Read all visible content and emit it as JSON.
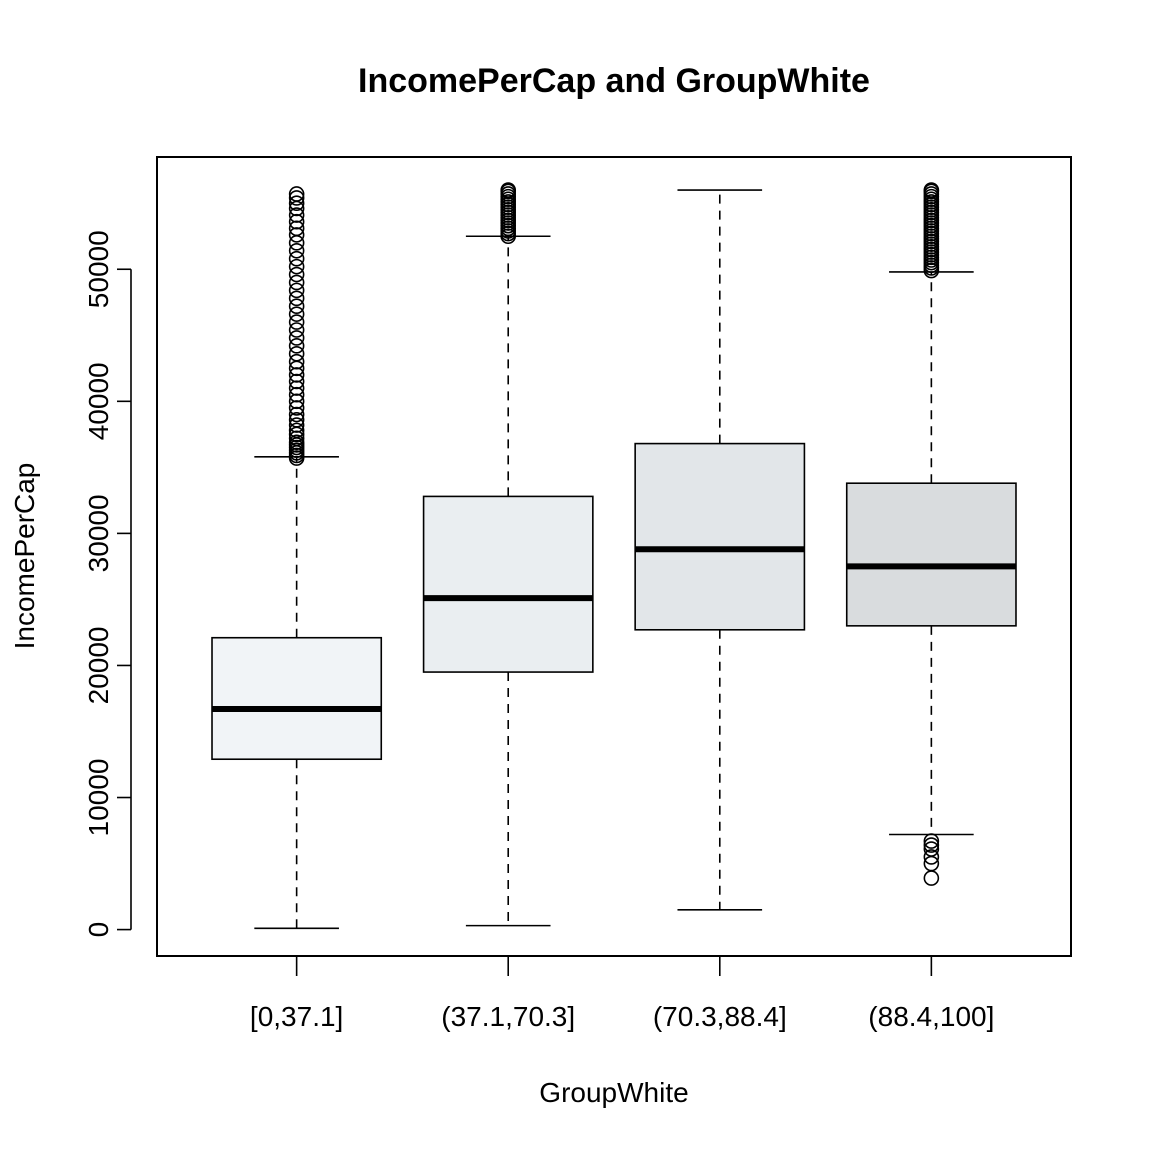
{
  "chart_data": {
    "type": "boxplot",
    "title": "IncomePerCap and GroupWhite",
    "xlabel": "GroupWhite",
    "ylabel": "IncomePerCap",
    "ylim": [
      -2000,
      58500
    ],
    "yticks": [
      0,
      10000,
      20000,
      30000,
      40000,
      50000
    ],
    "ytick_labels": [
      "0",
      "10000",
      "20000",
      "30000",
      "40000",
      "50000"
    ],
    "grid": false,
    "legend": "none",
    "categories": [
      "[0,37.1]",
      "(37.1,70.3]",
      "(70.3,88.4]",
      "(88.4,100]"
    ],
    "boxes": [
      {
        "category": "[0,37.1]",
        "lower_whisker": 100,
        "q1": 12900,
        "median": 16700,
        "q3": 22100,
        "upper_whisker": 35800,
        "fill": "#f1f4f7",
        "outliers": [
          35700,
          35900,
          36100,
          36300,
          36500,
          36700,
          36900,
          37200,
          37500,
          37800,
          38200,
          38600,
          39000,
          39500,
          40000,
          40500,
          41000,
          41500,
          42000,
          42500,
          43000,
          43600,
          44200,
          44800,
          45400,
          46000,
          46600,
          47200,
          47800,
          48400,
          49000,
          49600,
          50200,
          50800,
          51400,
          52000,
          52600,
          53100,
          53600,
          54100,
          54600,
          55000,
          55400,
          55700
        ]
      },
      {
        "category": "(37.1,70.3]",
        "lower_whisker": 300,
        "q1": 19500,
        "median": 25100,
        "q3": 32800,
        "upper_whisker": 52500,
        "fill": "#eaeef1",
        "outliers": [
          52500,
          52700,
          52900,
          53100,
          53300,
          53500,
          53700,
          53900,
          54100,
          54300,
          54500,
          54700,
          54900,
          55100,
          55300,
          55500,
          55700,
          55900,
          56000
        ]
      },
      {
        "category": "(70.3,88.4]",
        "lower_whisker": 1500,
        "q1": 22700,
        "median": 28800,
        "q3": 36800,
        "upper_whisker": 56000,
        "fill": "#e2e6e9",
        "outliers": []
      },
      {
        "category": "(88.4,100]",
        "lower_whisker": 7200,
        "q1": 23000,
        "median": 27500,
        "q3": 33800,
        "upper_whisker": 49800,
        "fill": "#d9dcde",
        "outliers": [
          3900,
          5000,
          5500,
          6100,
          6400,
          6700,
          49900,
          50100,
          50300,
          50500,
          50700,
          50900,
          51100,
          51300,
          51500,
          51700,
          51900,
          52100,
          52300,
          52500,
          52700,
          52900,
          53100,
          53300,
          53500,
          53700,
          53900,
          54100,
          54300,
          54500,
          54700,
          54900,
          55100,
          55300,
          55500,
          55700,
          55900,
          56000
        ]
      }
    ]
  }
}
